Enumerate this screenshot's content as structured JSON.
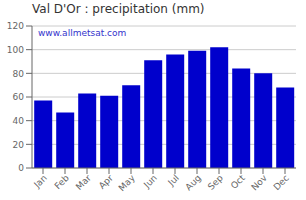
{
  "chart_data": {
    "type": "bar",
    "title": "Val D'Or : precipitation (mm)",
    "categories": [
      "Jan",
      "Feb",
      "Mar",
      "Apr",
      "May",
      "Jun",
      "Jul",
      "Aug",
      "Sep",
      "Oct",
      "Nov",
      "Dec"
    ],
    "values": [
      57,
      47,
      63,
      61,
      70,
      91,
      96,
      99,
      102,
      84,
      80,
      68
    ],
    "color": "#0000cc",
    "ylim": [
      0,
      120
    ],
    "yticks": [
      0,
      20,
      40,
      60,
      80,
      100,
      120
    ],
    "grid": true,
    "annotations": [
      "www.allmetsat.com"
    ]
  }
}
